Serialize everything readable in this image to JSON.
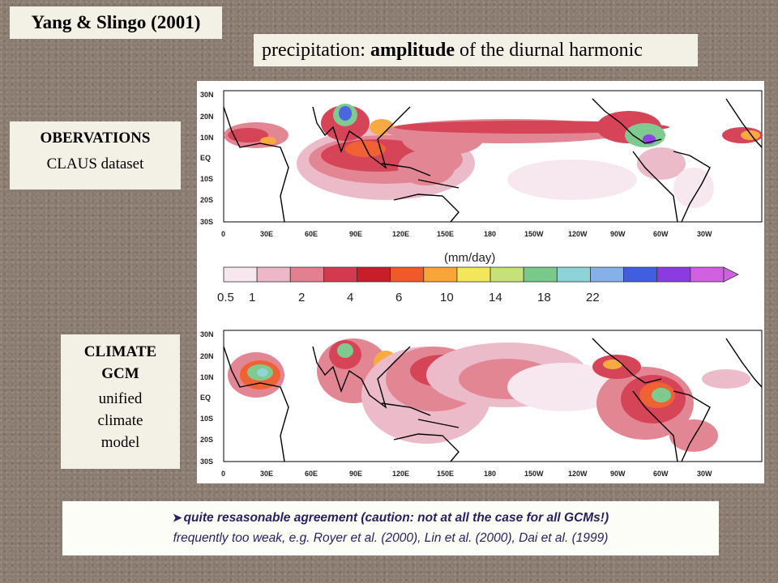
{
  "title": "Yang & Slingo (2001)",
  "subtitle": {
    "prefix": "precipitation: ",
    "bold": "amplitude",
    "suffix": " of the diurnal harmonic"
  },
  "observations": {
    "heading": "OBERVATIONS",
    "sub": "CLAUS dataset"
  },
  "gcm": {
    "heading_line1": "CLIMATE",
    "heading_line2": "GCM",
    "sub_line1": "unified",
    "sub_line2": "climate",
    "sub_line3": "model"
  },
  "maps": {
    "lat_labels": [
      "30N",
      "20N",
      "10N",
      "EQ",
      "10S",
      "20S",
      "30S"
    ],
    "lon_labels": [
      "0",
      "30E",
      "60E",
      "90E",
      "120E",
      "150E",
      "180",
      "150W",
      "120W",
      "90W",
      "60W",
      "30W"
    ]
  },
  "colorbar": {
    "units": "(mm/day)",
    "labels": [
      "0.5",
      "1",
      "2",
      "4",
      "6",
      "10",
      "14",
      "18",
      "22"
    ],
    "colors": [
      "#f7e6ee",
      "#ecb8c8",
      "#e2808f",
      "#d43a4f",
      "#c81e2a",
      "#f05a2a",
      "#f7a637",
      "#f3e65a",
      "#c6e07a",
      "#79c98a",
      "#8dd3d8",
      "#85b0e8",
      "#3f5fe0",
      "#8a3ce0",
      "#d060e0"
    ]
  },
  "footer": {
    "line1": "quite resasonable agreement (caution: not at all the case for all GCMs!)",
    "line2": "frequently too weak, e.g. Royer et al. (2000), Lin et al. (2000), Dai et al. (1999)"
  }
}
